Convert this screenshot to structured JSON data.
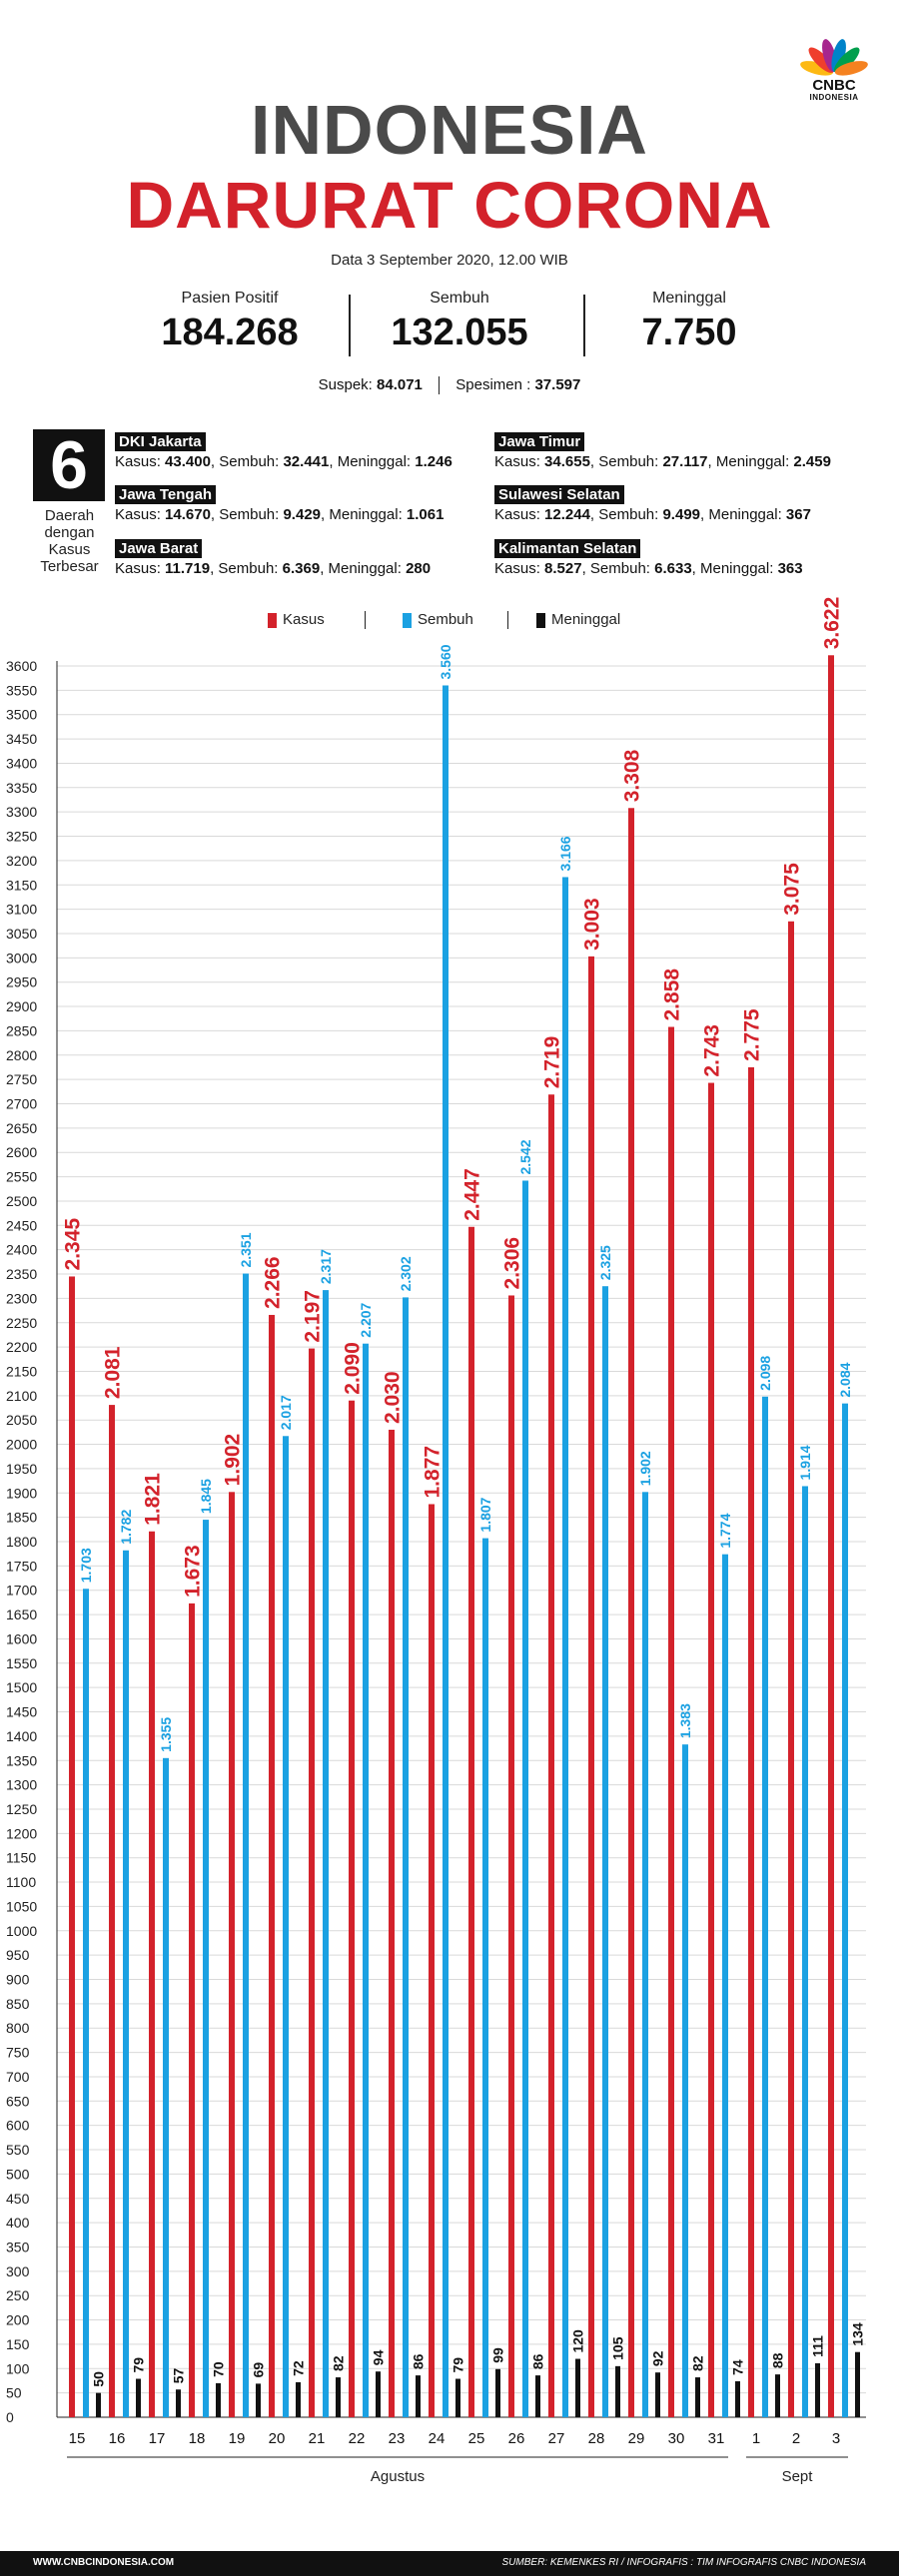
{
  "brand": {
    "name": "CNBC",
    "sub": "INDONESIA",
    "colors": [
      "#fdb913",
      "#ef3e2d",
      "#a7268e",
      "#0083c9",
      "#009f4d",
      "#f58220"
    ]
  },
  "title": {
    "line1": "INDONESIA",
    "line2": "DARURAT CORONA"
  },
  "dateline": "Data 3 September 2020, 12.00 WIB",
  "stats": [
    {
      "label": "Pasien Positif",
      "value": "184.268"
    },
    {
      "label": "Sembuh",
      "value": "132.055"
    },
    {
      "label": "Meninggal",
      "value": "7.750"
    }
  ],
  "suspek": {
    "label": "Suspek:",
    "value": "84.071",
    "spesimen_label": "Spesimen :",
    "spesimen_value": "37.597"
  },
  "regions_header": {
    "number": "6",
    "caption_1": "Daerah",
    "caption_2": "dengan",
    "caption_3": "Kasus",
    "caption_4": "Terbesar"
  },
  "regions": [
    {
      "name": "DKI Jakarta",
      "kasus": "43.400",
      "sembuh": "32.441",
      "meninggal": "1.246"
    },
    {
      "name": "Jawa Tengah",
      "kasus": "14.670",
      "sembuh": "9.429",
      "meninggal": "1.061"
    },
    {
      "name": "Jawa Barat",
      "kasus": "11.719",
      "sembuh": "6.369",
      "meninggal": "280"
    },
    {
      "name": "Jawa Timur",
      "kasus": "34.655",
      "sembuh": "27.117",
      "meninggal": "2.459"
    },
    {
      "name": "Sulawesi Selatan",
      "kasus": "12.244",
      "sembuh": "9.499",
      "meninggal": "367"
    },
    {
      "name": "Kalimantan Selatan",
      "kasus": "8.527",
      "sembuh": "6.633",
      "meninggal": "363"
    }
  ],
  "region_labels": {
    "kasus": "Kasus:",
    "sembuh": "Sembuh:",
    "meninggal": "Meninggal:"
  },
  "colors": {
    "kasus": "#d3222b",
    "sembuh": "#1ba1e2",
    "meninggal": "#111111"
  },
  "chart_data": {
    "type": "bar",
    "categories": [
      "15",
      "16",
      "17",
      "18",
      "19",
      "20",
      "21",
      "22",
      "23",
      "24",
      "25",
      "26",
      "27",
      "28",
      "29",
      "30",
      "31",
      "1",
      "2",
      "3"
    ],
    "month_groups": [
      {
        "label": "Agustus",
        "start": 0,
        "end": 16
      },
      {
        "label": "Sept",
        "start": 17,
        "end": 19
      }
    ],
    "series": [
      {
        "name": "Kasus",
        "color": "#d3222b",
        "values": [
          2345,
          2081,
          1821,
          1673,
          1902,
          2266,
          2197,
          2090,
          2030,
          1877,
          2447,
          2306,
          2719,
          3003,
          3308,
          2858,
          2743,
          2775,
          3075,
          3622
        ]
      },
      {
        "name": "Sembuh",
        "color": "#1ba1e2",
        "values": [
          1703,
          1782,
          1355,
          1845,
          2351,
          2017,
          2317,
          2207,
          2302,
          3560,
          1807,
          2542,
          3166,
          2325,
          1902,
          1383,
          1774,
          2098,
          1914,
          2084
        ]
      },
      {
        "name": "Meninggal",
        "color": "#111111",
        "values": [
          50,
          79,
          57,
          70,
          69,
          72,
          82,
          94,
          86,
          79,
          99,
          86,
          120,
          105,
          92,
          82,
          74,
          88,
          111,
          134
        ]
      }
    ],
    "data_labels": [
      [
        "2.345",
        "2.081",
        "1.821",
        "1.673",
        "1.902",
        "2.266",
        "2.197",
        "2.090",
        "2.030",
        "1.877",
        "2.447",
        "2.306",
        "2.719",
        "3.003",
        "3.308",
        "2.858",
        "2.743",
        "2.775",
        "3.075",
        "3.622"
      ],
      [
        "1.703",
        "1.782",
        "1.355",
        "1.845",
        "2.351",
        "2.017",
        "2.317",
        "2.207",
        "2.302",
        "3.560",
        "1.807",
        "2.542",
        "3.166",
        "2.325",
        "1.902",
        "1.383",
        "1.774",
        "2.098",
        "1.914",
        "2.084"
      ],
      [
        "50",
        "79",
        "57",
        "70",
        "69",
        "72",
        "82",
        "94",
        "86",
        "79",
        "99",
        "86",
        "120",
        "105",
        "92",
        "82",
        "74",
        "88",
        "111",
        "134"
      ]
    ],
    "ylim": [
      0,
      3600
    ],
    "ytick_step": 50,
    "grid": true,
    "legend_position": "top-center"
  },
  "footer": {
    "left": "WWW.CNBCINDONESIA.COM",
    "right": "SUMBER: KEMENKES RI / INFOGRAFIS : TIM INFOGRAFIS CNBC INDONESIA"
  }
}
